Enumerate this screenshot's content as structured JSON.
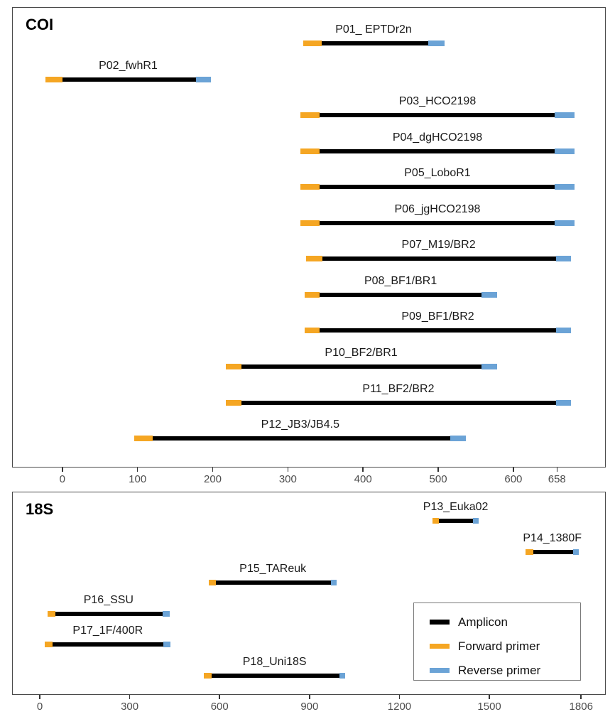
{
  "colors": {
    "amplicon": "#000000",
    "forward": "#F5A623",
    "reverse": "#6BA3D6",
    "panel_border": "#4a4a4a",
    "tick": "#333333",
    "tick_label": "#4d4d4d"
  },
  "legend": {
    "items": [
      {
        "label": "Amplicon",
        "color_key": "amplicon"
      },
      {
        "label": "Forward primer",
        "color_key": "forward"
      },
      {
        "label": "Reverse primer",
        "color_key": "reverse"
      }
    ]
  },
  "chart_data": [
    {
      "type": "bar",
      "title": "COI",
      "orientation": "horizontal",
      "xlabel": "",
      "axis": {
        "domain": [
          -66,
          722
        ],
        "tick_values": [
          0,
          100,
          200,
          300,
          400,
          500,
          600,
          658
        ],
        "tick_labels": [
          "0",
          "100",
          "200",
          "300",
          "400",
          "500",
          "600",
          "658"
        ]
      },
      "series": [
        {
          "label": "P01_ EPTDr2n",
          "forward": [
            320,
            345
          ],
          "amplicon": [
            345,
            487
          ],
          "reverse": [
            487,
            508
          ]
        },
        {
          "label": "P02_fwhR1",
          "forward": [
            -23,
            0
          ],
          "amplicon": [
            0,
            178
          ],
          "reverse": [
            178,
            198
          ]
        },
        {
          "label": "P03_HCO2198",
          "forward": [
            317,
            342
          ],
          "amplicon": [
            342,
            655
          ],
          "reverse": [
            655,
            681
          ]
        },
        {
          "label": "P04_dgHCO2198",
          "forward": [
            317,
            342
          ],
          "amplicon": [
            342,
            655
          ],
          "reverse": [
            655,
            681
          ]
        },
        {
          "label": "P05_LoboR1",
          "forward": [
            317,
            342
          ],
          "amplicon": [
            342,
            655
          ],
          "reverse": [
            655,
            681
          ]
        },
        {
          "label": "P06_jgHCO2198",
          "forward": [
            317,
            342
          ],
          "amplicon": [
            342,
            655
          ],
          "reverse": [
            655,
            681
          ]
        },
        {
          "label": "P07_M19/BR2",
          "forward": [
            324,
            346
          ],
          "amplicon": [
            346,
            657
          ],
          "reverse": [
            657,
            677
          ]
        },
        {
          "label": "P08_BF1/BR1",
          "forward": [
            322,
            342
          ],
          "amplicon": [
            342,
            558
          ],
          "reverse": [
            558,
            578
          ]
        },
        {
          "label": "P09_BF1/BR2",
          "forward": [
            322,
            342
          ],
          "amplicon": [
            342,
            657
          ],
          "reverse": [
            657,
            677
          ]
        },
        {
          "label": "P10_BF2/BR1",
          "forward": [
            217,
            238
          ],
          "amplicon": [
            238,
            558
          ],
          "reverse": [
            558,
            578
          ]
        },
        {
          "label": "P11_BF2/BR2",
          "forward": [
            217,
            238
          ],
          "amplicon": [
            238,
            657
          ],
          "reverse": [
            657,
            677
          ]
        },
        {
          "label": "P12_JB3/JB4.5",
          "forward": [
            96,
            120
          ],
          "amplicon": [
            120,
            516
          ],
          "reverse": [
            516,
            537
          ]
        }
      ]
    },
    {
      "type": "bar",
      "title": "18S",
      "orientation": "horizontal",
      "xlabel": "",
      "axis": {
        "domain": [
          -90,
          1886
        ],
        "tick_values": [
          0,
          300,
          600,
          900,
          1200,
          1500,
          1806
        ],
        "tick_labels": [
          "0",
          "300",
          "600",
          "900",
          "1200",
          "1500",
          "1806"
        ]
      },
      "series": [
        {
          "label": "P13_Euka02",
          "forward": [
            1310,
            1331
          ],
          "amplicon": [
            1331,
            1446
          ],
          "reverse": [
            1446,
            1465
          ]
        },
        {
          "label": "P14_1380F",
          "forward": [
            1621,
            1647
          ],
          "amplicon": [
            1647,
            1780
          ],
          "reverse": [
            1780,
            1799
          ]
        },
        {
          "label": "P15_TAReuk",
          "forward": [
            564,
            588
          ],
          "amplicon": [
            588,
            972
          ],
          "reverse": [
            972,
            991
          ]
        },
        {
          "label": "P16_SSU",
          "forward": [
            26,
            52
          ],
          "amplicon": [
            52,
            410
          ],
          "reverse": [
            410,
            433
          ]
        },
        {
          "label": "P17_1F/400R",
          "forward": [
            17,
            43
          ],
          "amplicon": [
            43,
            413
          ],
          "reverse": [
            413,
            437
          ]
        },
        {
          "label": "P18_Uni18S",
          "forward": [
            548,
            573
          ],
          "amplicon": [
            573,
            1000
          ],
          "reverse": [
            1000,
            1019
          ]
        }
      ]
    }
  ]
}
